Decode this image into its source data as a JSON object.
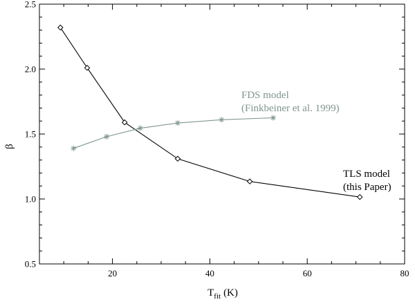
{
  "chart_data": {
    "type": "line",
    "xlabel": "T",
    "xlabel_subscript": "fit",
    "xlabel_unit": "(K)",
    "ylabel": "β",
    "xlim": [
      5,
      80
    ],
    "ylim": [
      0.5,
      2.5
    ],
    "x_ticks": [
      20,
      40,
      60,
      80
    ],
    "y_ticks": [
      0.5,
      1.0,
      1.5,
      2.0,
      2.5
    ],
    "x_tick_labels": [
      "20",
      "40",
      "60",
      "80"
    ],
    "y_tick_labels": [
      "0.5",
      "1.0",
      "1.5",
      "2.0",
      "2.5"
    ],
    "grid": false,
    "series": [
      {
        "id": "tls",
        "marker": "diamond",
        "color": "#000000",
        "annotation": [
          "TLS model",
          "(this Paper)"
        ],
        "x": [
          9.3,
          14.8,
          22.5,
          33.4,
          48.2,
          70.8
        ],
        "y": [
          2.32,
          2.01,
          1.59,
          1.31,
          1.135,
          1.015
        ]
      },
      {
        "id": "fds",
        "marker": "asterisk",
        "color": "#7f9590",
        "annotation": [
          "FDS model",
          "(Finkbeiner et al. 1999)"
        ],
        "x": [
          12.0,
          18.8,
          25.7,
          33.4,
          42.4,
          53.0
        ],
        "y": [
          1.39,
          1.48,
          1.545,
          1.585,
          1.61,
          1.625
        ]
      }
    ]
  }
}
